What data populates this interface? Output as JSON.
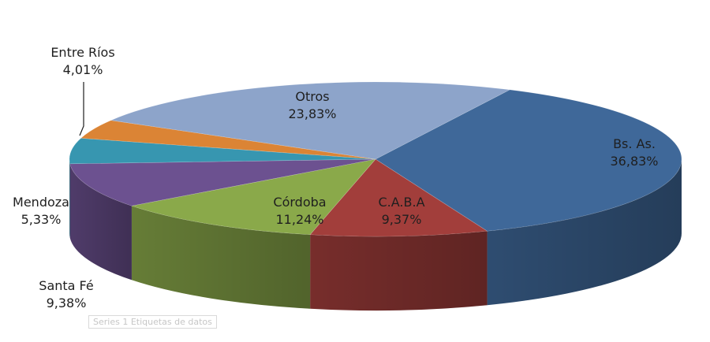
{
  "chart_data": {
    "type": "pie",
    "style": "3d",
    "slices": [
      {
        "label": "Bs. As.",
        "value": 36.83,
        "value_label": "36,83%",
        "color": "#3F6899"
      },
      {
        "label": "C.A.B.A",
        "value": 9.37,
        "value_label": "9,37%",
        "color": "#A23E3B"
      },
      {
        "label": "Córdoba",
        "value": 11.24,
        "value_label": "11,24%",
        "color": "#8AA94A"
      },
      {
        "label": "Santa Fé",
        "value": 9.38,
        "value_label": "9,38%",
        "color": "#6C5190"
      },
      {
        "label": "Mendoza",
        "value": 5.33,
        "value_label": "5,33%",
        "color": "#3796B0"
      },
      {
        "label": "Entre Ríos",
        "value": 4.01,
        "value_label": "4,01%",
        "color": "#DB8435"
      },
      {
        "label": "Otros",
        "value": 23.83,
        "value_label": "23,83%",
        "color": "#8DA4CA"
      }
    ]
  },
  "tooltip_text": "Series 1 Etiquetas de datos"
}
